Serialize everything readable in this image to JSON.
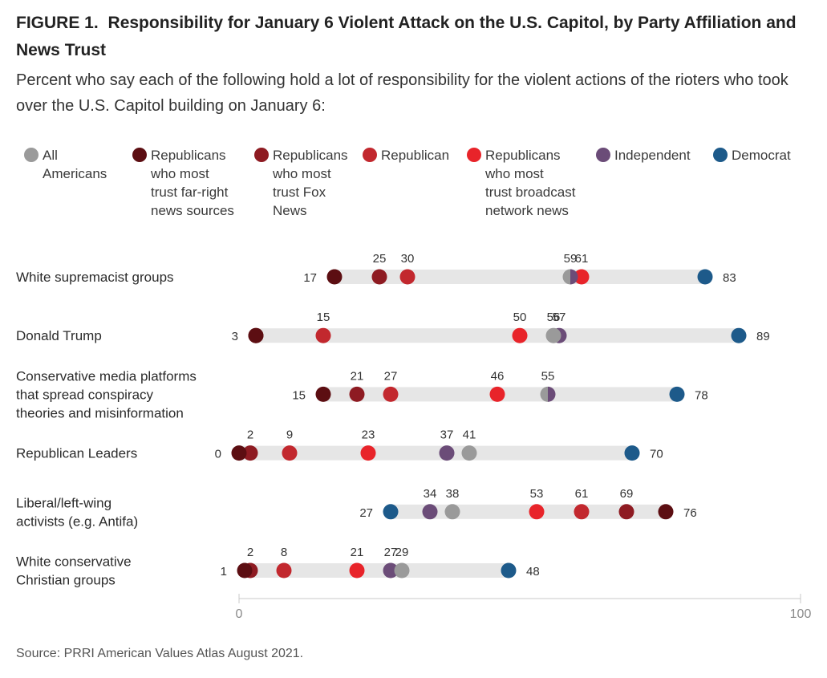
{
  "header": {
    "figure_label": "FIGURE 1.",
    "title": "Responsibility for January 6 Violent Attack on the U.S. Capitol, by Party Affiliation and News Trust",
    "subtitle": "Percent who say each of the following hold a lot of responsibility for the violent actions of the rioters who took over the U.S. Capitol building on January 6:"
  },
  "source": "Source: PRRI American Values Atlas August 2021.",
  "chart_data": {
    "type": "dot-range",
    "xlim": [
      0,
      100
    ],
    "x_ticks": [
      "0",
      "100"
    ],
    "series": [
      {
        "key": "all",
        "name": [
          "All",
          "Americans"
        ],
        "color": "#9a9a9a"
      },
      {
        "key": "far_right",
        "name": [
          "Republicans",
          "who most",
          "trust far-right",
          "news sources"
        ],
        "color": "#5c0e12"
      },
      {
        "key": "fox",
        "name": [
          "Republicans",
          "who most",
          "trust Fox",
          "News"
        ],
        "color": "#8e1b22"
      },
      {
        "key": "republican",
        "name": [
          "Republican"
        ],
        "color": "#c2282e"
      },
      {
        "key": "broadcast",
        "name": [
          "Republicans",
          "who most",
          "trust broadcast",
          "network news"
        ],
        "color": "#e8242a"
      },
      {
        "key": "independent",
        "name": [
          "Independent"
        ],
        "color": "#6b4c78"
      },
      {
        "key": "democrat",
        "name": [
          "Democrat"
        ],
        "color": "#1d5a8a"
      }
    ],
    "rows": [
      {
        "label": [
          "White supremacist groups"
        ],
        "values": {
          "far_right": 17,
          "fox": 25,
          "republican": 30,
          "all": 59,
          "independent": 59,
          "broadcast": 61,
          "democrat": 83
        },
        "labels": [
          {
            "v": 17,
            "t": "17",
            "pos": "left"
          },
          {
            "v": 25,
            "t": "25",
            "pos": "above"
          },
          {
            "v": 30,
            "t": "30",
            "pos": "above"
          },
          {
            "v": 59,
            "t": "59",
            "pos": "above"
          },
          {
            "v": 61,
            "t": "61",
            "pos": "above"
          },
          {
            "v": 83,
            "t": "83",
            "pos": "right"
          }
        ]
      },
      {
        "label": [
          "Donald Trump"
        ],
        "values": {
          "far_right": 3,
          "fox": 3,
          "republican": 15,
          "broadcast": 50,
          "all": 56,
          "independent": 57,
          "democrat": 89
        },
        "labels": [
          {
            "v": 3,
            "t": "3",
            "pos": "left"
          },
          {
            "v": 15,
            "t": "15",
            "pos": "above"
          },
          {
            "v": 50,
            "t": "50",
            "pos": "above"
          },
          {
            "v": 56,
            "t": "56",
            "pos": "above"
          },
          {
            "v": 57,
            "t": "57",
            "pos": "above"
          },
          {
            "v": 89,
            "t": "89",
            "pos": "right"
          }
        ]
      },
      {
        "label": [
          "Conservative media platforms",
          "that spread conspiracy",
          "theories and misinformation"
        ],
        "values": {
          "far_right": 15,
          "fox": 21,
          "republican": 27,
          "broadcast": 46,
          "all": 55,
          "independent": 55,
          "democrat": 78
        },
        "labels": [
          {
            "v": 15,
            "t": "15",
            "pos": "left"
          },
          {
            "v": 21,
            "t": "21",
            "pos": "above"
          },
          {
            "v": 27,
            "t": "27",
            "pos": "above"
          },
          {
            "v": 46,
            "t": "46",
            "pos": "above"
          },
          {
            "v": 55,
            "t": "55",
            "pos": "above"
          },
          {
            "v": 78,
            "t": "78",
            "pos": "right"
          }
        ]
      },
      {
        "label": [
          "Republican Leaders"
        ],
        "values": {
          "far_right": 0,
          "fox": 2,
          "republican": 9,
          "broadcast": 23,
          "independent": 37,
          "all": 41,
          "democrat": 70
        },
        "labels": [
          {
            "v": 0,
            "t": "0",
            "pos": "left"
          },
          {
            "v": 2,
            "t": "2",
            "pos": "above"
          },
          {
            "v": 9,
            "t": "9",
            "pos": "above"
          },
          {
            "v": 23,
            "t": "23",
            "pos": "above"
          },
          {
            "v": 37,
            "t": "37",
            "pos": "above"
          },
          {
            "v": 41,
            "t": "41",
            "pos": "above"
          },
          {
            "v": 70,
            "t": "70",
            "pos": "right"
          }
        ]
      },
      {
        "label": [
          "Liberal/left-wing",
          "activists (e.g. Antifa)"
        ],
        "values": {
          "democrat": 27,
          "independent": 34,
          "all": 38,
          "broadcast": 53,
          "republican": 61,
          "fox": 69,
          "far_right": 76
        },
        "labels": [
          {
            "v": 27,
            "t": "27",
            "pos": "left"
          },
          {
            "v": 34,
            "t": "34",
            "pos": "above"
          },
          {
            "v": 38,
            "t": "38",
            "pos": "above"
          },
          {
            "v": 53,
            "t": "53",
            "pos": "above"
          },
          {
            "v": 61,
            "t": "61",
            "pos": "above"
          },
          {
            "v": 69,
            "t": "69",
            "pos": "above"
          },
          {
            "v": 76,
            "t": "76",
            "pos": "right"
          }
        ]
      },
      {
        "label": [
          "White conservative",
          "Christian groups"
        ],
        "values": {
          "far_right": 1,
          "fox": 2,
          "republican": 8,
          "broadcast": 21,
          "independent": 27,
          "all": 29,
          "democrat": 48
        },
        "labels": [
          {
            "v": 1,
            "t": "1",
            "pos": "left"
          },
          {
            "v": 2,
            "t": "2",
            "pos": "above"
          },
          {
            "v": 8,
            "t": "8",
            "pos": "above"
          },
          {
            "v": 21,
            "t": "21",
            "pos": "above"
          },
          {
            "v": 27,
            "t": "27",
            "pos": "above"
          },
          {
            "v": 29,
            "t": "29",
            "pos": "above"
          },
          {
            "v": 48,
            "t": "48",
            "pos": "right"
          }
        ]
      }
    ]
  }
}
